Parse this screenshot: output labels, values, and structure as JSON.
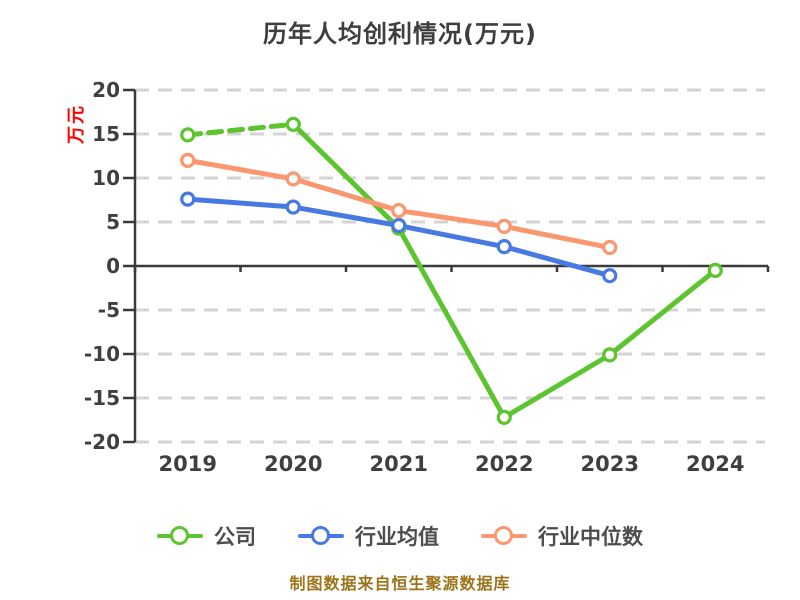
{
  "title": "历年人均创利情况(万元)",
  "footer": {
    "source_note": "制图数据来自恒生聚源数据库"
  },
  "colors": {
    "title_text": "#3e3e3e",
    "axis": "#3a3a3a",
    "gridline": "#d4d4d4",
    "tick_label_text": "#3f3f3f",
    "legend_text": "#4d4d4d",
    "y_unit_label": "#ff0000",
    "source_note": "#9c751b",
    "company": "#5bc42e",
    "industry_average": "#4679e1",
    "industry_median": "#fa976f"
  },
  "chart_data": {
    "type": "line",
    "title": "历年人均创利情况(万元)",
    "xlabel": "",
    "ylabel": "万元",
    "categories": [
      "2019",
      "2020",
      "2021",
      "2022",
      "2023",
      "2024"
    ],
    "series": [
      {
        "id": "company",
        "name": "公司",
        "color": "#5bc42e",
        "line_style": "dashed-first-segment",
        "values": [
          14.9,
          16.1,
          4.3,
          -17.2,
          -10.1,
          -0.5
        ]
      },
      {
        "id": "industry-average",
        "name": "行业均值",
        "color": "#4679e1",
        "line_style": "solid",
        "values": [
          7.6,
          6.7,
          4.6,
          2.2,
          -1.1,
          null
        ]
      },
      {
        "id": "industry-median",
        "name": "行业中位数",
        "color": "#fa976f",
        "line_style": "solid",
        "values": [
          12.0,
          9.9,
          6.3,
          4.5,
          2.1,
          null
        ]
      }
    ],
    "ylim": [
      -20,
      20
    ],
    "ytick_step": 5,
    "grid": "horizontal dashed",
    "legend_position": "bottom",
    "marker": "open-circle"
  }
}
